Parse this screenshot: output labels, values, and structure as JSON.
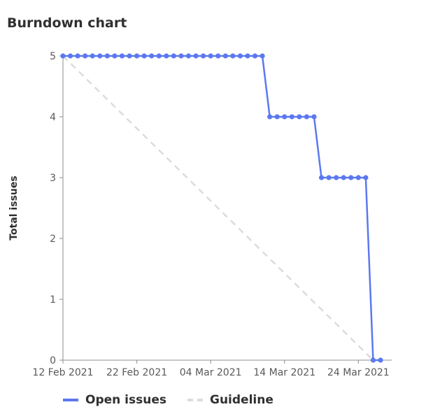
{
  "title": "Burndown chart",
  "chart_data": {
    "type": "line",
    "title": "Burndown chart",
    "xlabel": "",
    "ylabel": "Total issues",
    "ylim": [
      0,
      5
    ],
    "yticks": [
      "0",
      "1",
      "2",
      "3",
      "4",
      "5"
    ],
    "xlim": [
      "2021-02-12",
      "2021-03-27"
    ],
    "xticks": [
      {
        "date": "2021-02-12",
        "label": "12 Feb 2021"
      },
      {
        "date": "2021-02-22",
        "label": "22 Feb 2021"
      },
      {
        "date": "2021-03-04",
        "label": "04 Mar 2021"
      },
      {
        "date": "2021-03-14",
        "label": "14 Mar 2021"
      },
      {
        "date": "2021-03-24",
        "label": "24 Mar 2021"
      }
    ],
    "legend_position": "bottom",
    "grid": false,
    "series": [
      {
        "name": "Open issues",
        "color": "#5b78f0",
        "style": "solid",
        "markers": true,
        "points": [
          [
            "2021-02-12",
            5
          ],
          [
            "2021-02-13",
            5
          ],
          [
            "2021-02-14",
            5
          ],
          [
            "2021-02-15",
            5
          ],
          [
            "2021-02-16",
            5
          ],
          [
            "2021-02-17",
            5
          ],
          [
            "2021-02-18",
            5
          ],
          [
            "2021-02-19",
            5
          ],
          [
            "2021-02-20",
            5
          ],
          [
            "2021-02-21",
            5
          ],
          [
            "2021-02-22",
            5
          ],
          [
            "2021-02-23",
            5
          ],
          [
            "2021-02-24",
            5
          ],
          [
            "2021-02-25",
            5
          ],
          [
            "2021-02-26",
            5
          ],
          [
            "2021-02-27",
            5
          ],
          [
            "2021-02-28",
            5
          ],
          [
            "2021-03-01",
            5
          ],
          [
            "2021-03-02",
            5
          ],
          [
            "2021-03-03",
            5
          ],
          [
            "2021-03-04",
            5
          ],
          [
            "2021-03-05",
            5
          ],
          [
            "2021-03-06",
            5
          ],
          [
            "2021-03-07",
            5
          ],
          [
            "2021-03-08",
            5
          ],
          [
            "2021-03-09",
            5
          ],
          [
            "2021-03-10",
            5
          ],
          [
            "2021-03-11",
            5
          ],
          [
            "2021-03-12",
            4
          ],
          [
            "2021-03-13",
            4
          ],
          [
            "2021-03-14",
            4
          ],
          [
            "2021-03-15",
            4
          ],
          [
            "2021-03-16",
            4
          ],
          [
            "2021-03-17",
            4
          ],
          [
            "2021-03-18",
            4
          ],
          [
            "2021-03-19",
            3
          ],
          [
            "2021-03-20",
            3
          ],
          [
            "2021-03-21",
            3
          ],
          [
            "2021-03-22",
            3
          ],
          [
            "2021-03-23",
            3
          ],
          [
            "2021-03-24",
            3
          ],
          [
            "2021-03-25",
            3
          ],
          [
            "2021-03-26",
            0
          ],
          [
            "2021-03-27",
            0
          ]
        ]
      },
      {
        "name": "Guideline",
        "color": "#dcdcdc",
        "style": "dashed",
        "markers": false,
        "points": [
          [
            "2021-02-12",
            5
          ],
          [
            "2021-03-26",
            0
          ]
        ]
      }
    ]
  },
  "legend": {
    "items": [
      {
        "label": "Open issues",
        "color": "#5b78f0",
        "style": "solid"
      },
      {
        "label": "Guideline",
        "color": "#dcdcdc",
        "style": "dashed"
      }
    ]
  }
}
